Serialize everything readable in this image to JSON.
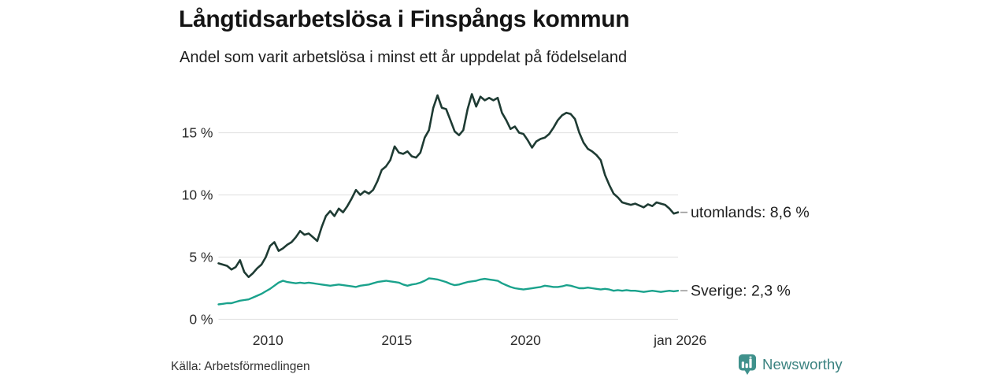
{
  "header": {
    "title": "Långtidsarbetslösa i Finspångs kommun",
    "subtitle": "Andel som varit arbetslösa i minst ett år uppdelat på födelseland"
  },
  "footer": {
    "source": "Källa: Arbetsförmedlingen",
    "brand": "Newsworthy"
  },
  "colors": {
    "series_utomlands": "#1e3b33",
    "series_sverige": "#1aa28c",
    "gridline": "#e4e4e4",
    "connector_dash": "#999999",
    "brand_teal": "#3f918c"
  },
  "chart_data": {
    "type": "line",
    "title": "Långtidsarbetslösa i Finspångs kommun",
    "subtitle": "Andel som varit arbetslösa i minst ett år uppdelat på födelseland",
    "xlabel": "",
    "ylabel": "",
    "x_domain": [
      2008.083,
      2025.917
    ],
    "ylim": [
      0,
      18.6
    ],
    "grid": "horizontal",
    "legend_position": "right-end-labels",
    "x_start": 2008.083,
    "x_step_years": 0.16667,
    "yticks": [
      {
        "value": 0,
        "label": "0 %"
      },
      {
        "value": 5,
        "label": "5 %"
      },
      {
        "value": 10,
        "label": "10 %"
      },
      {
        "value": 15,
        "label": "15 %"
      }
    ],
    "xticks": [
      {
        "value": 2010,
        "label": "2010"
      },
      {
        "value": 2015,
        "label": "2015"
      },
      {
        "value": 2020,
        "label": "2020"
      },
      {
        "value": 2026,
        "label": "jan 2026"
      }
    ],
    "series": [
      {
        "name": "utomlands",
        "label": "utomlands: 8,6 %",
        "last_value": "8,6 %",
        "color": "#1e3b33",
        "stroke_width": 2.6,
        "values": [
          4.5,
          4.4,
          4.3,
          4.0,
          4.2,
          4.75,
          3.8,
          3.4,
          3.7,
          4.1,
          4.4,
          5.0,
          5.9,
          6.2,
          5.5,
          5.7,
          6.0,
          6.2,
          6.6,
          7.1,
          6.8,
          6.9,
          6.6,
          6.3,
          7.4,
          8.3,
          8.7,
          8.3,
          8.9,
          8.6,
          9.1,
          9.7,
          10.4,
          10.0,
          10.3,
          10.1,
          10.4,
          11.1,
          12.0,
          12.3,
          12.8,
          13.9,
          13.4,
          13.3,
          13.5,
          13.1,
          13.0,
          13.4,
          14.6,
          15.2,
          17.0,
          18.0,
          17.0,
          16.9,
          16.0,
          15.1,
          14.8,
          15.2,
          16.9,
          18.1,
          17.1,
          17.9,
          17.6,
          17.8,
          17.6,
          17.8,
          16.6,
          16.0,
          15.3,
          15.5,
          15.0,
          14.9,
          14.4,
          13.8,
          14.3,
          14.5,
          14.6,
          14.9,
          15.4,
          16.0,
          16.4,
          16.6,
          16.5,
          16.1,
          15.0,
          14.2,
          13.7,
          13.5,
          13.2,
          12.8,
          11.6,
          10.8,
          10.1,
          9.8,
          9.4,
          9.3,
          9.2,
          9.3,
          9.15,
          9.0,
          9.25,
          9.1,
          9.4,
          9.3,
          9.2,
          8.9,
          8.5,
          8.6
        ]
      },
      {
        "name": "Sverige",
        "label": "Sverige: 2,3 %",
        "last_value": "2,3 %",
        "color": "#1aa28c",
        "stroke_width": 2.4,
        "values": [
          1.2,
          1.25,
          1.3,
          1.3,
          1.4,
          1.5,
          1.55,
          1.6,
          1.75,
          1.9,
          2.05,
          2.25,
          2.45,
          2.7,
          2.95,
          3.1,
          3.0,
          2.95,
          2.9,
          2.95,
          2.9,
          2.95,
          2.9,
          2.85,
          2.8,
          2.75,
          2.7,
          2.75,
          2.8,
          2.75,
          2.7,
          2.65,
          2.6,
          2.7,
          2.75,
          2.8,
          2.9,
          3.0,
          3.05,
          3.1,
          3.05,
          3.0,
          2.95,
          2.8,
          2.7,
          2.8,
          2.85,
          2.95,
          3.1,
          3.3,
          3.25,
          3.2,
          3.1,
          3.0,
          2.85,
          2.75,
          2.8,
          2.9,
          3.0,
          3.05,
          3.1,
          3.2,
          3.25,
          3.2,
          3.15,
          3.1,
          2.9,
          2.75,
          2.6,
          2.5,
          2.45,
          2.4,
          2.45,
          2.5,
          2.55,
          2.6,
          2.7,
          2.65,
          2.6,
          2.6,
          2.65,
          2.75,
          2.7,
          2.6,
          2.5,
          2.5,
          2.55,
          2.5,
          2.45,
          2.4,
          2.45,
          2.4,
          2.3,
          2.35,
          2.3,
          2.35,
          2.3,
          2.3,
          2.25,
          2.2,
          2.25,
          2.3,
          2.25,
          2.2,
          2.25,
          2.3,
          2.25,
          2.3
        ]
      }
    ]
  }
}
